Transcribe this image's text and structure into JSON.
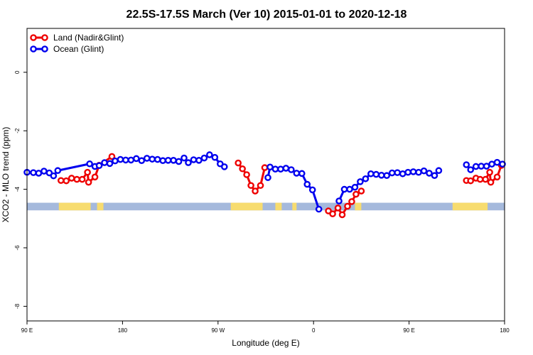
{
  "chart_data": {
    "type": "line",
    "title": "22.5S-17.5S March (Ver 10)   2015-01-01 to 2020-12-18",
    "xlabel": "Longitude (deg E)",
    "ylabel": "XCO2 - MLO trend (ppm)",
    "xlim": [
      90,
      540
    ],
    "ylim": [
      -8.5,
      1.5
    ],
    "x_ticks": [
      {
        "value": 90,
        "label": "90 E"
      },
      {
        "value": 180,
        "label": "180"
      },
      {
        "value": 270,
        "label": "90 W"
      },
      {
        "value": 360,
        "label": "0"
      },
      {
        "value": 450,
        "label": "90 E"
      },
      {
        "value": 540,
        "label": "180"
      }
    ],
    "y_ticks": [
      {
        "value": 0,
        "label": "0"
      },
      {
        "value": -2,
        "label": "-2"
      },
      {
        "value": -4,
        "label": "-4"
      },
      {
        "value": -6,
        "label": "-6"
      },
      {
        "value": -8,
        "label": "-8"
      }
    ],
    "legend_position": "top-left",
    "series": [
      {
        "name": "Land (Nadir&Glint)",
        "color": "#ee0000",
        "points": [
          [
            122,
            -3.7
          ],
          [
            127,
            -3.71
          ],
          [
            132,
            -3.62
          ],
          [
            137,
            -3.66
          ],
          [
            142,
            -3.66
          ],
          [
            147,
            -3.42
          ],
          [
            148,
            -3.76
          ],
          [
            154,
            -3.58
          ],
          [
            158,
            -3.18
          ],
          [
            170,
            -2.88
          ],
          null,
          [
            289,
            -3.1
          ],
          [
            293,
            -3.3
          ],
          [
            297,
            -3.5
          ],
          [
            301,
            -3.87
          ],
          [
            305,
            -4.06
          ],
          [
            310,
            -3.87
          ],
          [
            314,
            -3.26
          ],
          null,
          [
            374,
            -4.74
          ],
          [
            378,
            -4.84
          ],
          [
            383,
            -4.64
          ],
          [
            387,
            -4.87
          ],
          [
            392,
            -4.58
          ],
          [
            396,
            -4.42
          ],
          [
            400,
            -4.17
          ],
          [
            405,
            -4.06
          ],
          null,
          [
            504,
            -3.7
          ],
          [
            508,
            -3.71
          ],
          [
            513,
            -3.62
          ],
          [
            517,
            -3.66
          ],
          [
            522,
            -3.66
          ],
          [
            526,
            -3.42
          ],
          [
            527,
            -3.76
          ],
          [
            533,
            -3.58
          ],
          [
            537,
            -3.18
          ]
        ]
      },
      {
        "name": "Ocean (Glint)",
        "color": "#0000ee",
        "points": [
          [
            90,
            -3.42
          ],
          [
            96,
            -3.43
          ],
          [
            101,
            -3.45
          ],
          [
            106,
            -3.38
          ],
          [
            111,
            -3.44
          ],
          [
            115,
            -3.54
          ],
          [
            119,
            -3.36
          ],
          [
            149,
            -3.13
          ],
          [
            154,
            -3.22
          ],
          [
            158,
            -3.19
          ],
          [
            163,
            -3.09
          ],
          [
            168,
            -3.12
          ],
          [
            173,
            -3.03
          ],
          [
            178,
            -2.98
          ],
          [
            183,
            -3.0
          ],
          [
            188,
            -3.0
          ],
          [
            193,
            -2.95
          ],
          [
            198,
            -3.02
          ],
          [
            203,
            -2.94
          ],
          [
            208,
            -2.97
          ],
          [
            213,
            -2.98
          ],
          [
            218,
            -3.02
          ],
          [
            223,
            -3.01
          ],
          [
            228,
            -3.01
          ],
          [
            233,
            -3.05
          ],
          [
            238,
            -2.93
          ],
          [
            242,
            -3.09
          ],
          [
            247,
            -2.99
          ],
          [
            252,
            -3.01
          ],
          [
            257,
            -2.93
          ],
          [
            262,
            -2.82
          ],
          [
            267,
            -2.91
          ],
          [
            272,
            -3.13
          ],
          [
            276,
            -3.23
          ],
          null,
          [
            317,
            -3.6
          ],
          [
            319,
            -3.24
          ],
          [
            324,
            -3.31
          ],
          [
            329,
            -3.31
          ],
          [
            334,
            -3.28
          ],
          [
            339,
            -3.33
          ],
          [
            344,
            -3.45
          ],
          [
            349,
            -3.46
          ],
          [
            354,
            -3.83
          ],
          [
            359,
            -4.02
          ],
          [
            365,
            -4.68
          ],
          null,
          [
            384,
            -4.4
          ],
          [
            389,
            -4.0
          ],
          [
            394,
            -4.0
          ],
          [
            399,
            -3.93
          ],
          [
            404,
            -3.74
          ],
          [
            409,
            -3.64
          ],
          [
            414,
            -3.47
          ],
          [
            419,
            -3.49
          ],
          [
            424,
            -3.52
          ],
          [
            429,
            -3.53
          ],
          [
            434,
            -3.44
          ],
          [
            439,
            -3.43
          ],
          [
            444,
            -3.47
          ],
          [
            449,
            -3.42
          ],
          [
            454,
            -3.4
          ],
          [
            459,
            -3.42
          ],
          [
            464,
            -3.37
          ],
          [
            469,
            -3.45
          ],
          [
            474,
            -3.53
          ],
          [
            478,
            -3.36
          ],
          null,
          [
            504,
            -3.16
          ],
          [
            508,
            -3.33
          ],
          [
            513,
            -3.22
          ],
          [
            518,
            -3.21
          ],
          [
            523,
            -3.21
          ],
          [
            528,
            -3.14
          ],
          [
            533,
            -3.08
          ],
          [
            538,
            -3.14
          ]
        ]
      }
    ],
    "land_bar": {
      "y_range": [
        -4.72,
        -4.46
      ],
      "ocean_color": "#a5b9dc",
      "land_color": "#f7dc6f",
      "land_segments": [
        [
          120,
          150
        ],
        [
          156,
          162
        ],
        [
          282,
          312
        ],
        [
          324,
          330
        ],
        [
          340,
          344
        ],
        [
          399,
          405
        ],
        [
          491,
          524
        ]
      ]
    }
  }
}
